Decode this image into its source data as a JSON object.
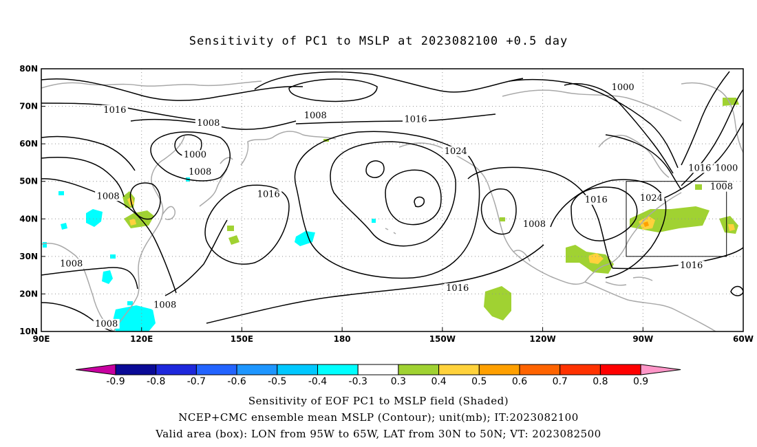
{
  "title": "Sensitivity of PC1 to MSLP at 2023082100 +0.5 day",
  "captions": [
    "Sensitivity of EOF PC1 to MSLP field (Shaded)",
    "NCEP+CMC ensemble mean MSLP (Contour); unit(mb); IT:2023082100",
    "Valid area (box): LON from 95W to 65W, LAT from 30N to 50N; VT: 2023082500"
  ],
  "map": {
    "lon_range": [
      90,
      300
    ],
    "lat_range": [
      10,
      80
    ],
    "lon_ticks": [
      {
        "lon": 90,
        "label": "90E"
      },
      {
        "lon": 120,
        "label": "120E"
      },
      {
        "lon": 150,
        "label": "150E"
      },
      {
        "lon": 180,
        "label": "180"
      },
      {
        "lon": 210,
        "label": "150W"
      },
      {
        "lon": 240,
        "label": "120W"
      },
      {
        "lon": 270,
        "label": "90W"
      },
      {
        "lon": 300,
        "label": "60W"
      }
    ],
    "lat_ticks": [
      {
        "lat": 10,
        "label": "10N"
      },
      {
        "lat": 20,
        "label": "20N"
      },
      {
        "lat": 30,
        "label": "30N"
      },
      {
        "lat": 40,
        "label": "40N"
      },
      {
        "lat": 50,
        "label": "50N"
      },
      {
        "lat": 60,
        "label": "60N"
      },
      {
        "lat": 70,
        "label": "70N"
      },
      {
        "lat": 80,
        "label": "80N"
      }
    ],
    "valid_box": {
      "lon_min": 265,
      "lon_max": 295,
      "lat_min": 30,
      "lat_max": 50
    },
    "contour_labels": [
      {
        "text": "1016",
        "lon": 112,
        "lat": 68.5
      },
      {
        "text": "1008",
        "lon": 140,
        "lat": 65
      },
      {
        "text": "1008",
        "lon": 172,
        "lat": 67
      },
      {
        "text": "1016",
        "lon": 202,
        "lat": 66
      },
      {
        "text": "1000",
        "lon": 264,
        "lat": 74.5
      },
      {
        "text": "1000",
        "lon": 136,
        "lat": 56.5
      },
      {
        "text": "1008",
        "lon": 137.5,
        "lat": 52
      },
      {
        "text": "1024",
        "lon": 214,
        "lat": 57.5
      },
      {
        "text": "1016",
        "lon": 287,
        "lat": 53
      },
      {
        "text": "1000",
        "lon": 295,
        "lat": 53
      },
      {
        "text": "1008",
        "lon": 293.5,
        "lat": 48
      },
      {
        "text": "1008",
        "lon": 110,
        "lat": 45.5
      },
      {
        "text": "1016",
        "lon": 158,
        "lat": 46
      },
      {
        "text": "1016",
        "lon": 256,
        "lat": 44.5
      },
      {
        "text": "1024",
        "lon": 272.5,
        "lat": 45
      },
      {
        "text": "1008",
        "lon": 237.5,
        "lat": 38
      },
      {
        "text": "1008",
        "lon": 99,
        "lat": 27.5
      },
      {
        "text": "1016",
        "lon": 284.5,
        "lat": 27
      },
      {
        "text": "1016",
        "lon": 214.5,
        "lat": 21
      },
      {
        "text": "1008",
        "lon": 127,
        "lat": 16.5
      },
      {
        "text": "1008",
        "lon": 109.5,
        "lat": 11.5
      }
    ],
    "contour_color": "#000000",
    "coast_color": "#a8a8a8",
    "grid_color": "#909090"
  },
  "colorbar": {
    "labels": [
      "-0.9",
      "-0.8",
      "-0.7",
      "-0.6",
      "-0.5",
      "-0.4",
      "-0.3",
      "0.3",
      "0.4",
      "0.5",
      "0.6",
      "0.7",
      "0.8",
      "0.9"
    ],
    "colors": [
      "#0a0a96",
      "#1e28dc",
      "#2364ff",
      "#1e96ff",
      "#00c8ff",
      "#00ffff",
      "#ffffff",
      "#a0d232",
      "#ffd23c",
      "#ffa000",
      "#ff6400",
      "#ff3200",
      "#ff0000"
    ],
    "low_end_color": "#c800a0",
    "high_end_color": "#ff96c8"
  }
}
